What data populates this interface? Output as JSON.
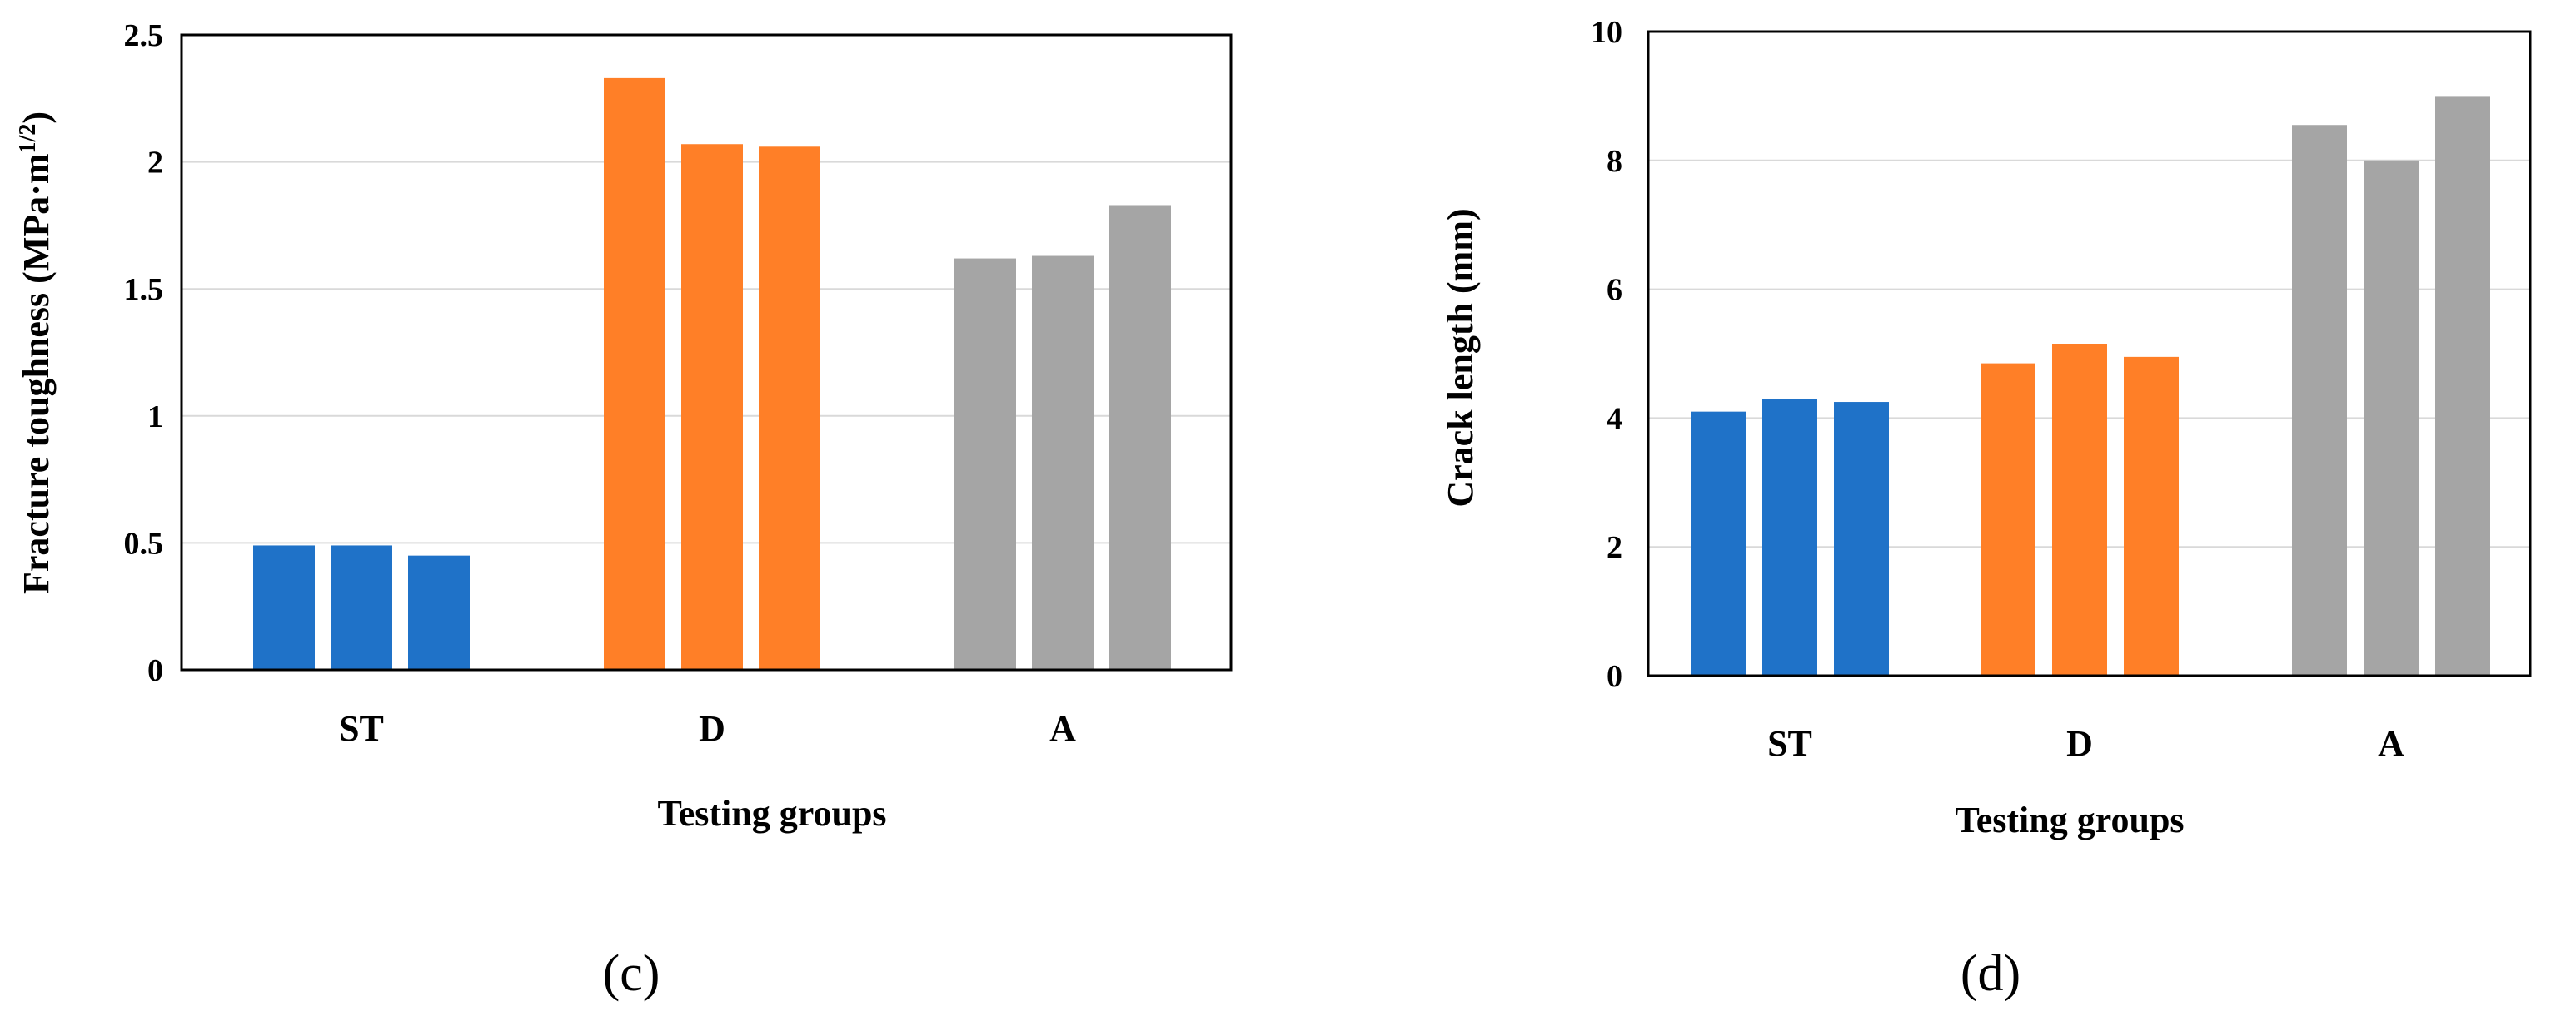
{
  "colors": {
    "series_1": "#1F72C8",
    "series_2": "#FF7F27",
    "series_3": "#A5A5A5",
    "grid": "#D9D9D9",
    "axis": "#000000"
  },
  "chart_data": [
    {
      "id": "c",
      "type": "bar",
      "panel_label": "(c)",
      "title": "",
      "xlabel": "Testing groups",
      "ylabel_main": "Fracture toughness (MPa·m",
      "ylabel_sup": "1/2",
      "ylabel_close": ")",
      "ylim": [
        0,
        2.5
      ],
      "yticks": [
        0,
        0.5,
        1,
        1.5,
        2,
        2.5
      ],
      "ytick_labels": [
        "0",
        "0.5",
        "1",
        "1.5",
        "2",
        "2.5"
      ],
      "grid": true,
      "categories": [
        "ST",
        "D",
        "A"
      ],
      "bars_per_group": 3,
      "values": [
        [
          0.49,
          0.49,
          0.45
        ],
        [
          2.33,
          2.07,
          2.06
        ],
        [
          1.62,
          1.63,
          1.83
        ]
      ]
    },
    {
      "id": "d",
      "type": "bar",
      "panel_label": "(d)",
      "title": "",
      "xlabel": "Testing groups",
      "ylabel_main": "Crack length (mm)",
      "ylabel_sup": "",
      "ylabel_close": "",
      "ylim": [
        0,
        10
      ],
      "yticks": [
        0,
        2,
        4,
        6,
        8,
        10
      ],
      "ytick_labels": [
        "0",
        "2",
        "4",
        "6",
        "8",
        "10"
      ],
      "grid": true,
      "categories": [
        "ST",
        "D",
        "A"
      ],
      "bars_per_group": 3,
      "values": [
        [
          4.1,
          4.3,
          4.25
        ],
        [
          4.85,
          5.15,
          4.95
        ],
        [
          8.55,
          8.0,
          9.0
        ]
      ]
    }
  ]
}
